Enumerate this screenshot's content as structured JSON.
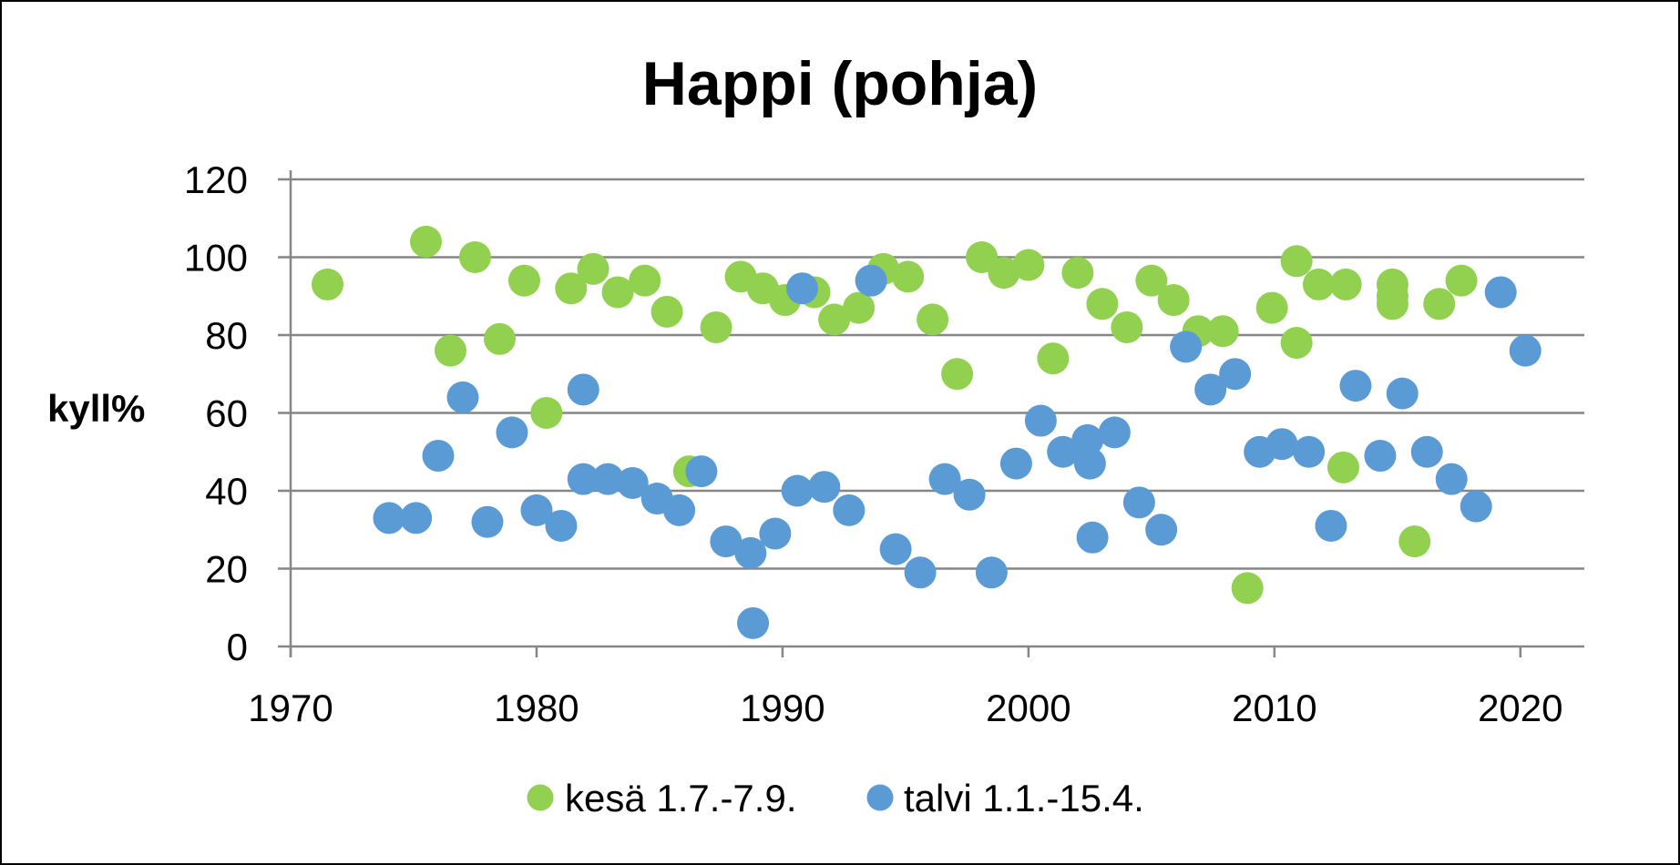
{
  "chart_data": {
    "type": "scatter",
    "title": "Happi (pohja)",
    "xlabel": "",
    "ylabel": "kyll%",
    "xlim": [
      1970,
      2022.6
    ],
    "ylim": [
      0,
      120
    ],
    "xticks": [
      1970,
      1980,
      1990,
      2000,
      2010,
      2020
    ],
    "yticks": [
      0,
      20,
      40,
      60,
      80,
      100,
      120
    ],
    "grid": true,
    "legend_position": "bottom",
    "series": [
      {
        "name": "kesä 1.7.-7.9.",
        "color": "#92d050",
        "points": [
          [
            1971.5,
            93
          ],
          [
            1975.5,
            104
          ],
          [
            1976.5,
            76
          ],
          [
            1977.5,
            100
          ],
          [
            1978.5,
            79
          ],
          [
            1979.5,
            94
          ],
          [
            1980.4,
            60
          ],
          [
            1981.4,
            92
          ],
          [
            1982.3,
            97
          ],
          [
            1983.3,
            91
          ],
          [
            1984.4,
            94
          ],
          [
            1985.3,
            86
          ],
          [
            1986.2,
            45
          ],
          [
            1987.3,
            82
          ],
          [
            1988.3,
            95
          ],
          [
            1989.2,
            92
          ],
          [
            1990.1,
            89
          ],
          [
            1991.3,
            91
          ],
          [
            1992.1,
            84
          ],
          [
            1993.1,
            87
          ],
          [
            1994.1,
            97
          ],
          [
            1995.1,
            95
          ],
          [
            1996.1,
            84
          ],
          [
            1997.1,
            70
          ],
          [
            1998.1,
            100
          ],
          [
            1999.0,
            96
          ],
          [
            2000.0,
            98
          ],
          [
            2001.0,
            74
          ],
          [
            2002.0,
            96
          ],
          [
            2003.0,
            88
          ],
          [
            2004.0,
            82
          ],
          [
            2005.0,
            94
          ],
          [
            2005.9,
            89
          ],
          [
            2006.9,
            81
          ],
          [
            2007.9,
            81
          ],
          [
            2008.9,
            15
          ],
          [
            2009.9,
            87
          ],
          [
            2010.9,
            99
          ],
          [
            2010.9,
            78
          ],
          [
            2011.8,
            93
          ],
          [
            2012.8,
            46
          ],
          [
            2012.9,
            93
          ],
          [
            2014.8,
            93
          ],
          [
            2014.8,
            88
          ],
          [
            2014.8,
            90
          ],
          [
            2015.7,
            27
          ],
          [
            2016.7,
            88
          ],
          [
            2017.6,
            94
          ]
        ]
      },
      {
        "name": "talvi 1.1.-15.4.",
        "color": "#5b9bd5",
        "points": [
          [
            1974.0,
            33
          ],
          [
            1975.1,
            33
          ],
          [
            1976.0,
            49
          ],
          [
            1977.0,
            64
          ],
          [
            1978.0,
            32
          ],
          [
            1979.0,
            55
          ],
          [
            1980.0,
            35
          ],
          [
            1981.0,
            31
          ],
          [
            1981.9,
            66
          ],
          [
            1981.9,
            43
          ],
          [
            1982.9,
            43
          ],
          [
            1983.9,
            42
          ],
          [
            1984.9,
            38
          ],
          [
            1985.8,
            35
          ],
          [
            1986.7,
            45
          ],
          [
            1987.7,
            27
          ],
          [
            1988.7,
            24
          ],
          [
            1988.8,
            6
          ],
          [
            1989.7,
            29
          ],
          [
            1990.6,
            40
          ],
          [
            1990.8,
            92
          ],
          [
            1991.7,
            41
          ],
          [
            1992.7,
            35
          ],
          [
            1993.6,
            94
          ],
          [
            1994.6,
            25
          ],
          [
            1995.6,
            19
          ],
          [
            1996.6,
            43
          ],
          [
            1997.6,
            39
          ],
          [
            1998.5,
            19
          ],
          [
            1999.5,
            47
          ],
          [
            2000.5,
            58
          ],
          [
            2001.4,
            50
          ],
          [
            2002.4,
            53
          ],
          [
            2002.5,
            47
          ],
          [
            2002.6,
            28
          ],
          [
            2003.5,
            55
          ],
          [
            2004.5,
            37
          ],
          [
            2005.4,
            30
          ],
          [
            2006.4,
            77
          ],
          [
            2007.4,
            66
          ],
          [
            2008.4,
            70
          ],
          [
            2009.4,
            50
          ],
          [
            2010.3,
            52
          ],
          [
            2011.4,
            50
          ],
          [
            2012.3,
            31
          ],
          [
            2013.3,
            67
          ],
          [
            2014.3,
            49
          ],
          [
            2015.2,
            65
          ],
          [
            2016.2,
            50
          ],
          [
            2017.2,
            43
          ],
          [
            2018.2,
            36
          ],
          [
            2019.2,
            91
          ],
          [
            2020.2,
            76
          ]
        ]
      }
    ]
  }
}
